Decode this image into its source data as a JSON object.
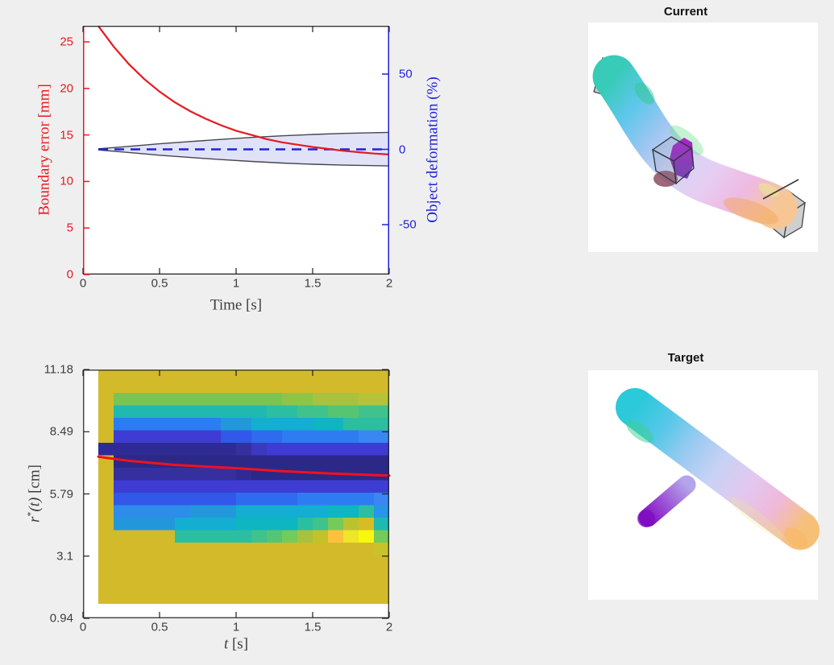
{
  "figure": {
    "background": "#efefef",
    "plot_background": "#ffffff"
  },
  "top_plot": {
    "xlabel": "Time [s]",
    "x_ticks": [
      {
        "v": 0,
        "t": "0"
      },
      {
        "v": 0.5,
        "t": "0.5"
      },
      {
        "v": 1,
        "t": "1"
      },
      {
        "v": 1.5,
        "t": "1.5"
      },
      {
        "v": 2,
        "t": "2"
      }
    ],
    "left_axis": {
      "label": "Boundary error [mm]",
      "color": "#e8191f",
      "ticks": [
        {
          "v": 0,
          "t": "0"
        },
        {
          "v": 5,
          "t": "5"
        },
        {
          "v": 10,
          "t": "10"
        },
        {
          "v": 15,
          "t": "15"
        },
        {
          "v": 20,
          "t": "20"
        },
        {
          "v": 25,
          "t": "25"
        }
      ]
    },
    "right_axis": {
      "label": "Object deformation (%)",
      "color": "#2121dc",
      "ticks": [
        {
          "v": -50,
          "t": "-50"
        },
        {
          "v": 0,
          "t": "0"
        },
        {
          "v": 50,
          "t": "50"
        }
      ]
    },
    "colors": {
      "envelope_fill": "#e0e2f8",
      "envelope_edge": "#46464e",
      "spine_dark": "#1f1f1f"
    }
  },
  "heatmap": {
    "xlabel_var": "t",
    "xlabel_unit": " [s]",
    "ylabel_var": "r",
    "ylabel_sup": "*",
    "ylabel_arg": "(t)",
    "ylabel_unit": " [cm]",
    "x_ticks": [
      {
        "v": 0,
        "t": "0"
      },
      {
        "v": 0.5,
        "t": "0.5"
      },
      {
        "v": 1,
        "t": "1"
      },
      {
        "v": 1.5,
        "t": "1.5"
      },
      {
        "v": 2,
        "t": "2"
      }
    ],
    "y_ticks": [
      "11.18",
      "8.49",
      "5.79",
      "3.1",
      "0.94"
    ]
  },
  "current_panel": {
    "title": "Current",
    "tube_gradient": [
      "#38cbb8",
      "#5ec7ec",
      "#9fc6f1",
      "#d3d6f6",
      "#e7cdf2",
      "#efb9e2",
      "#f6c795"
    ],
    "blob_top": "#ad17cc",
    "blob_bottom": "#6f2fb2",
    "shadow": "#8a4f63",
    "gripper_fill": "#c9c9c9",
    "gripper_edge": "#3f3f3f"
  },
  "target_panel": {
    "title": "Target",
    "tube_gradient": [
      "#2bc9da",
      "#55c8e8",
      "#9ccaf1",
      "#c8d2f4",
      "#e2c8f0",
      "#efb9da",
      "#f7c078"
    ],
    "branch_gradient": [
      "#b4a4ea",
      "#8812c6"
    ],
    "branch_tip": "#7c0ec0"
  },
  "chart_data": [
    {
      "type": "line",
      "xlabel": "Time [s]",
      "x_range": [
        0,
        2
      ],
      "left_axis": {
        "label": "Boundary error [mm]",
        "range": [
          0,
          26.7
        ],
        "ticks": [
          0,
          5,
          10,
          15,
          20,
          25
        ]
      },
      "right_axis": {
        "label": "Object deformation (%)",
        "range": [
          -83,
          82
        ],
        "ticks": [
          -50,
          0,
          50
        ]
      },
      "grid": false,
      "series": [
        {
          "name": "boundary-error",
          "axis": "left",
          "color": "#e8191f",
          "style": "solid",
          "t": [
            0.1,
            0.2,
            0.3,
            0.4,
            0.5,
            0.6,
            0.7,
            0.8,
            0.9,
            1.0,
            1.1,
            1.2,
            1.3,
            1.4,
            1.5,
            1.6,
            1.7,
            1.8,
            1.9,
            2.0
          ],
          "mm": [
            26.7,
            24.5,
            22.6,
            21.0,
            19.65,
            18.5,
            17.55,
            16.75,
            16.05,
            15.45,
            15.0,
            14.55,
            14.2,
            13.95,
            13.7,
            13.5,
            13.3,
            13.15,
            13.0,
            12.9
          ]
        },
        {
          "name": "object-deformation-mean",
          "axis": "right",
          "color": "#2121dc",
          "style": "dashed",
          "t": [
            0.1,
            2.0
          ],
          "pct": [
            0,
            0
          ]
        },
        {
          "name": "deformation-envelope-upper",
          "axis": "right",
          "color": "#46464e",
          "style": "solid",
          "t": [
            0.1,
            0.3,
            0.5,
            0.7,
            0.9,
            1.1,
            1.3,
            1.5,
            1.7,
            2.0
          ],
          "pct": [
            0.4,
            2.0,
            3.7,
            5.2,
            6.6,
            7.9,
            9.0,
            9.9,
            10.6,
            11.3
          ]
        },
        {
          "name": "deformation-envelope-lower",
          "axis": "right",
          "color": "#46464e",
          "style": "solid",
          "t": [
            0.1,
            0.3,
            0.5,
            0.7,
            0.9,
            1.1,
            1.3,
            1.5,
            1.7,
            2.0
          ],
          "pct": [
            -0.4,
            -2.1,
            -3.9,
            -5.4,
            -6.8,
            -8.0,
            -9.1,
            -9.9,
            -10.5,
            -11.0
          ]
        }
      ]
    },
    {
      "type": "heatmap",
      "xlabel": "t [s]",
      "ylabel": "r*(t) [cm]",
      "x_ticks": [
        0,
        0.5,
        1,
        1.5,
        2
      ],
      "y_ticks": [
        0.94,
        3.1,
        5.79,
        8.49,
        11.18
      ],
      "t_bin_start": 0.1,
      "t_bin_width": 0.1,
      "row_top_cm": 10.22,
      "row_height_cm": 0.515,
      "background_color_key": "Y",
      "palette": {
        "Y": "#d3ba2b",
        "G": "#7cc351",
        "H": "#8fc447",
        "g": "#a9c23d",
        "h": "#b6c338",
        "T": "#1fb9b0",
        "u": "#2cbea0",
        "t": "#3fc28b",
        "e": "#55c573",
        "E": "#74cb59",
        "B": "#2e7cf1",
        "b": "#3a86f2",
        "C": "#2298da",
        "c": "#13aed1",
        "s": "#0db6c0",
        "L": "#2e8ceb",
        "R": "#3158e8",
        "r": "#2e6bef",
        "V": "#3e3cd3",
        "v": "#3c38c0",
        "N": "#36309f",
        "D": "#2f2b94",
        "d": "#2c2887",
        "O": "#c9c32b",
        "o": "#d8bc25",
        "K": "#bac32e",
        "M": "#c3c229",
        "A": "#ffc13d",
        "X": "#efe52a",
        "W": "#f8f70e",
        "P": "#2696e8"
      },
      "rows": [
        "YGGGGGGGGGGGHHggghh",
        "YTTTTTTTTTTuutteett",
        "YBBBBBBBCCccccssuuu",
        "YVVVVVVVRRrrBBBBBbb",
        "DDDDDDDDDNvVVVVVVVV",
        "Ydddddddddddddddddd",
        "YNNNNNNNNDddddddddd",
        "YVVVVVVVVVVVVVVVVVV",
        "YRRRRRRRRrrrrBBBBBb",
        "YLLLLLCCCccccccssuP",
        "YCCCCccccssssutEKoT",
        "YYYYYuuuuuteEgMAXWE",
        "YYYYYYYYYYYYYYYYYYO"
      ],
      "overlay_line": {
        "name": "r-star-trajectory",
        "color": "#f2111c",
        "t": [
          0.1,
          0.3,
          0.6,
          1.0,
          1.3,
          1.6,
          2.0
        ],
        "cm": [
          7.42,
          7.24,
          7.06,
          6.92,
          6.79,
          6.69,
          6.59
        ]
      }
    }
  ]
}
